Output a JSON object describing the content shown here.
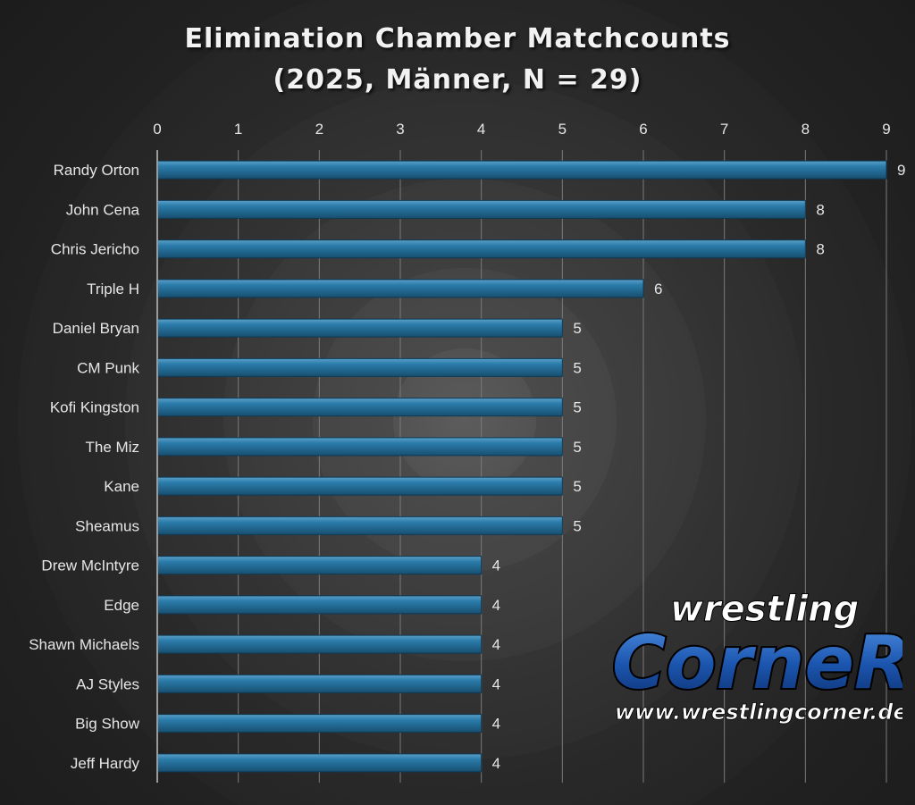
{
  "chart_data": {
    "type": "bar",
    "orientation": "horizontal",
    "title_lines": [
      "Elimination Chamber Matchcounts",
      "(2025, Männer, N = 29)"
    ],
    "categories": [
      "Randy Orton",
      "John Cena",
      "Chris Jericho",
      "Triple H",
      "Daniel Bryan",
      "CM Punk",
      "Kofi Kingston",
      "The Miz",
      "Kane",
      "Sheamus",
      "Drew McIntyre",
      "Edge",
      "Shawn Michaels",
      "AJ Styles",
      "Big Show",
      "Jeff Hardy"
    ],
    "values": [
      9,
      8,
      8,
      6,
      5,
      5,
      5,
      5,
      5,
      5,
      4,
      4,
      4,
      4,
      4,
      4
    ],
    "xlim": [
      0,
      9
    ],
    "xticks": [
      0,
      1,
      2,
      3,
      4,
      5,
      6,
      7,
      8,
      9
    ],
    "x_axis_position": "top",
    "grid": true,
    "data_labels": true,
    "bar_color": "#1f6e99",
    "text_color": "#e6e6e6"
  },
  "logo": {
    "line1": "wrestling",
    "line2": "CorneR",
    "url": "www.wrestlingcorner.de"
  }
}
